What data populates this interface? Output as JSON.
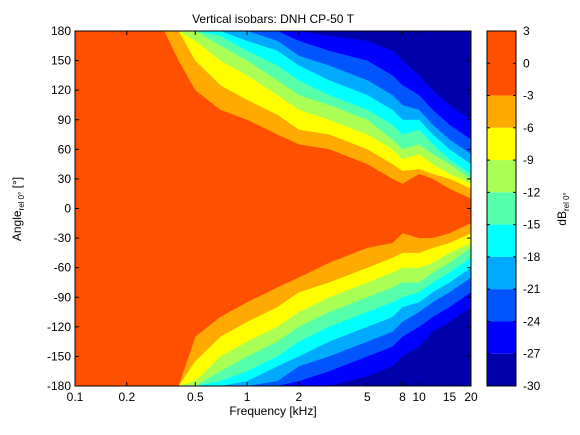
{
  "chart_data": {
    "type": "heatmap",
    "title": "Vertical isobars: DNH  CP-50 T",
    "xlabel": "Frequency [kHz]",
    "ylabel": {
      "main": "Angle",
      "sub": "rel 0°",
      "unit": " [°]"
    },
    "colorbar_label": {
      "main": "dB",
      "sub": "rel 0°"
    },
    "x_scale": "log",
    "xlim": [
      0.1,
      20
    ],
    "ylim": [
      -180,
      180
    ],
    "x_ticks": [
      {
        "value": 0.1,
        "label": "0.1"
      },
      {
        "value": 0.2,
        "label": "0.2"
      },
      {
        "value": 0.5,
        "label": "0.5"
      },
      {
        "value": 1,
        "label": "1"
      },
      {
        "value": 2,
        "label": "2"
      },
      {
        "value": 5,
        "label": "5"
      },
      {
        "value": 8,
        "label": "8"
      },
      {
        "value": 10,
        "label": "10"
      },
      {
        "value": 15,
        "label": "15"
      },
      {
        "value": 20,
        "label": "20"
      }
    ],
    "y_ticks": [
      180,
      150,
      120,
      90,
      60,
      30,
      0,
      -30,
      -60,
      -90,
      -120,
      -150,
      -180
    ],
    "colorbar": {
      "lim": [
        -30,
        3
      ],
      "ticks": [
        3,
        0,
        -3,
        -6,
        -9,
        -12,
        -15,
        -18,
        -21,
        -24,
        -27,
        -30
      ],
      "levels": [
        {
          "from": 3,
          "to": -3,
          "color": "#ff5000"
        },
        {
          "from": -3,
          "to": -6,
          "color": "#ffaa00"
        },
        {
          "from": -6,
          "to": -9,
          "color": "#ffff00"
        },
        {
          "from": -9,
          "to": -12,
          "color": "#aaff55"
        },
        {
          "from": -12,
          "to": -15,
          "color": "#55ffaa"
        },
        {
          "from": -15,
          "to": -18,
          "color": "#00ffff"
        },
        {
          "from": -18,
          "to": -21,
          "color": "#00aaff"
        },
        {
          "from": -21,
          "to": -24,
          "color": "#0055ff"
        },
        {
          "from": -24,
          "to": -27,
          "color": "#0000ff"
        },
        {
          "from": -27,
          "to": -30,
          "color": "#0000aa"
        }
      ]
    },
    "isobar_beamwidth": {
      "description_levels_dB": [
        -3,
        -6,
        -9,
        -12,
        -15,
        -18,
        -21,
        -24,
        -27
      ],
      "frequencies_kHz": [
        0.1,
        0.25,
        0.33,
        0.4,
        0.5,
        0.7,
        1,
        1.5,
        2,
        3,
        5,
        7,
        8,
        10,
        12,
        15,
        20
      ],
      "upper_angles_deg": [
        [
          180,
          180,
          180,
          150,
          120,
          100,
          90,
          75,
          65,
          60,
          45,
          30,
          25,
          35,
          30,
          20,
          10
        ],
        [
          180,
          180,
          180,
          180,
          150,
          125,
          110,
          95,
          80,
          75,
          60,
          45,
          38,
          40,
          35,
          30,
          20
        ],
        [
          180,
          180,
          180,
          180,
          170,
          150,
          135,
          115,
          100,
          90,
          75,
          60,
          50,
          55,
          45,
          35,
          25
        ],
        [
          180,
          180,
          180,
          180,
          180,
          165,
          150,
          130,
          115,
          105,
          90,
          70,
          60,
          65,
          55,
          45,
          30
        ],
        [
          180,
          180,
          180,
          180,
          180,
          175,
          160,
          145,
          130,
          115,
          100,
          85,
          75,
          80,
          65,
          50,
          35
        ],
        [
          180,
          180,
          180,
          180,
          180,
          180,
          170,
          160,
          145,
          130,
          115,
          100,
          90,
          90,
          75,
          60,
          45
        ],
        [
          180,
          180,
          180,
          180,
          180,
          180,
          180,
          170,
          155,
          145,
          130,
          115,
          105,
          100,
          85,
          70,
          55
        ],
        [
          180,
          180,
          180,
          180,
          180,
          180,
          180,
          180,
          170,
          160,
          150,
          135,
          125,
          115,
          100,
          85,
          70
        ],
        [
          180,
          180,
          180,
          180,
          180,
          180,
          180,
          180,
          180,
          175,
          170,
          160,
          150,
          135,
          120,
          105,
          90
        ]
      ],
      "lower_angles_deg": [
        [
          -180,
          -180,
          -180,
          -180,
          -130,
          -110,
          -95,
          -80,
          -70,
          -55,
          -40,
          -35,
          -25,
          -30,
          -30,
          -25,
          -15
        ],
        [
          -180,
          -180,
          -180,
          -180,
          -155,
          -130,
          -115,
          -100,
          -85,
          -75,
          -60,
          -50,
          -45,
          -45,
          -40,
          -35,
          -25
        ],
        [
          -180,
          -180,
          -180,
          -180,
          -175,
          -150,
          -135,
          -120,
          -105,
          -90,
          -75,
          -65,
          -60,
          -60,
          -55,
          -45,
          -35
        ],
        [
          -180,
          -180,
          -180,
          -180,
          -180,
          -165,
          -150,
          -135,
          -120,
          -105,
          -90,
          -80,
          -75,
          -75,
          -65,
          -55,
          -40
        ],
        [
          -180,
          -180,
          -180,
          -180,
          -180,
          -175,
          -165,
          -150,
          -135,
          -120,
          -105,
          -95,
          -90,
          -85,
          -75,
          -65,
          -50
        ],
        [
          -180,
          -180,
          -180,
          -180,
          -180,
          -180,
          -175,
          -160,
          -150,
          -135,
          -120,
          -110,
          -100,
          -95,
          -85,
          -75,
          -60
        ],
        [
          -180,
          -180,
          -180,
          -180,
          -180,
          -180,
          -180,
          -175,
          -160,
          -150,
          -135,
          -125,
          -115,
          -105,
          -95,
          -85,
          -70
        ],
        [
          -180,
          -180,
          -180,
          -180,
          -180,
          -180,
          -180,
          -180,
          -175,
          -165,
          -150,
          -140,
          -130,
          -120,
          -110,
          -100,
          -85
        ],
        [
          -180,
          -180,
          -180,
          -180,
          -180,
          -180,
          -180,
          -180,
          -180,
          -180,
          -170,
          -160,
          -150,
          -140,
          -125,
          -115,
          -100
        ]
      ]
    }
  }
}
